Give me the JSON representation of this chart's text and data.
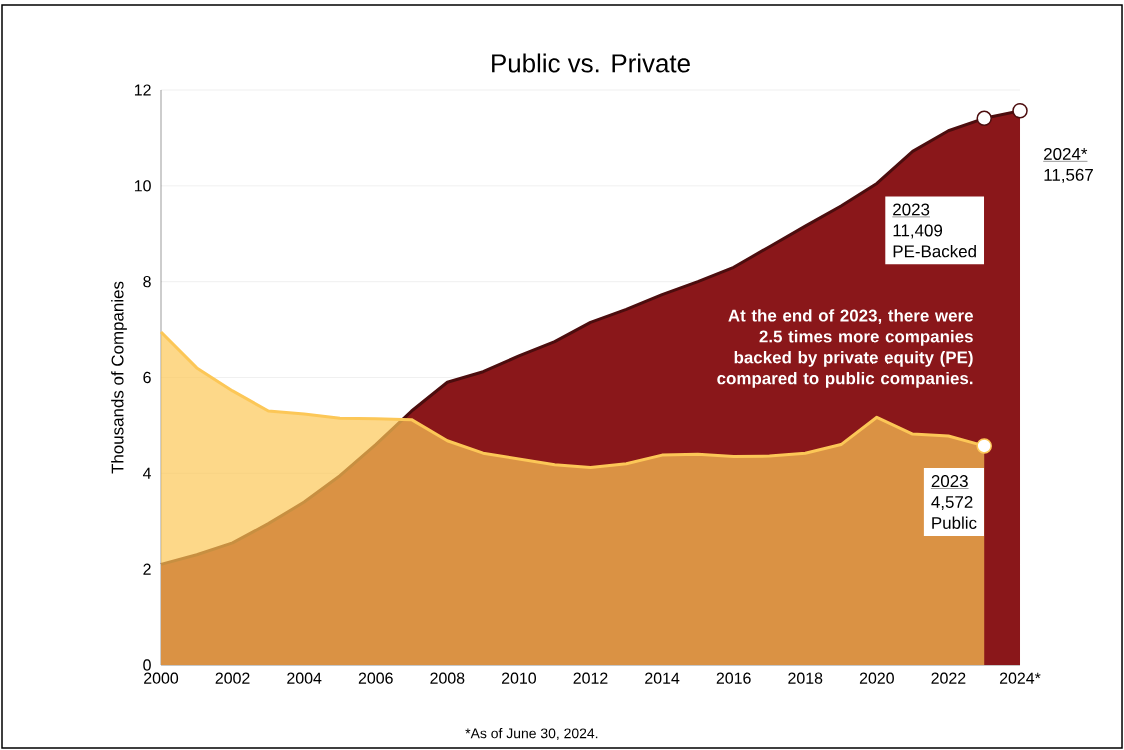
{
  "chart_data": {
    "type": "area",
    "title": "Public vs. Private",
    "ylabel": "Thousands of Companies",
    "x": [
      2000,
      2001,
      2002,
      2003,
      2004,
      2005,
      2006,
      2007,
      2008,
      2009,
      2010,
      2011,
      2012,
      2013,
      2014,
      2015,
      2016,
      2017,
      2018,
      2019,
      2020,
      2021,
      2022,
      2023,
      2024
    ],
    "series": [
      {
        "name": "PE-Backed",
        "color": "#8a171a",
        "values": [
          2.1,
          2.3,
          2.55,
          2.95,
          3.4,
          3.95,
          4.6,
          5.3,
          5.9,
          6.12,
          6.45,
          6.75,
          7.15,
          7.42,
          7.73,
          8.0,
          8.3,
          8.73,
          9.16,
          9.58,
          10.05,
          10.72,
          11.15,
          11.409,
          11.567
        ]
      },
      {
        "name": "Public",
        "color": "#fcc757",
        "values": [
          6.95,
          6.2,
          5.72,
          5.3,
          5.24,
          5.15,
          5.14,
          5.12,
          4.68,
          4.42,
          4.3,
          4.18,
          4.12,
          4.2,
          4.38,
          4.4,
          4.35,
          4.36,
          4.42,
          4.6,
          5.17,
          4.82,
          4.78,
          4.572,
          null
        ]
      }
    ],
    "xlim": [
      2000,
      2024
    ],
    "xticks": [
      2000,
      2002,
      2004,
      2006,
      2008,
      2010,
      2012,
      2014,
      2016,
      2018,
      2020,
      2022,
      {
        "value": 2024,
        "label": "2024*"
      }
    ],
    "ylim": [
      0,
      12
    ],
    "yticks": [
      0,
      2,
      4,
      6,
      8,
      10,
      12
    ],
    "grid": "y",
    "legend": false,
    "annotations": [
      "2023",
      "11,409",
      "2024*",
      "11,567",
      "2023",
      "4,572",
      "At the end of 2023, there were 2.5 times more companies backed by private equity (PE) compared to public companies.",
      "*As of June 30, 2024."
    ]
  }
}
